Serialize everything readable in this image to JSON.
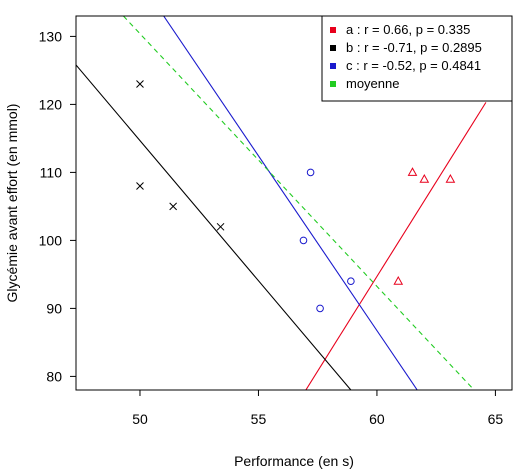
{
  "chart_data": {
    "type": "scatter",
    "title": "",
    "xlabel": "Performance (en s)",
    "ylabel": "Glycémie avant effort (en mmol)",
    "xlim": [
      47.3,
      65.7
    ],
    "ylim": [
      78,
      133
    ],
    "x_ticks": [
      50,
      55,
      60,
      65
    ],
    "y_ticks": [
      80,
      90,
      100,
      110,
      120,
      130
    ],
    "legend_position": "top-right",
    "series": [
      {
        "key": "a",
        "color": "#e8001c",
        "marker": "triangle",
        "points": [
          [
            61.5,
            110
          ],
          [
            62.0,
            109
          ],
          [
            63.1,
            109
          ],
          [
            60.9,
            94
          ]
        ],
        "fit_line": [
          [
            57.0,
            78.0
          ],
          [
            64.6,
            120.3
          ]
        ]
      },
      {
        "key": "b",
        "color": "#000000",
        "marker": "cross",
        "points": [
          [
            50.0,
            123
          ],
          [
            50.0,
            108
          ],
          [
            51.4,
            105
          ],
          [
            53.4,
            102
          ]
        ],
        "fit_line": [
          [
            47.3,
            125.8
          ],
          [
            58.9,
            78.0
          ]
        ]
      },
      {
        "key": "c",
        "color": "#1a1acd",
        "marker": "circle",
        "points": [
          [
            57.2,
            110
          ],
          [
            56.9,
            100
          ],
          [
            58.9,
            94
          ],
          [
            57.6,
            90
          ]
        ],
        "fit_line": [
          [
            51.0,
            133.0
          ],
          [
            61.7,
            78.0
          ]
        ]
      },
      {
        "key": "moyenne",
        "color": "#22cc22",
        "marker": "none",
        "dashed": true,
        "points": [],
        "fit_line": [
          [
            49.3,
            133.0
          ],
          [
            64.1,
            78.0
          ]
        ]
      }
    ],
    "legend": [
      {
        "label": "a : r = 0.66, p = 0.335",
        "color": "#e8001c"
      },
      {
        "label": "b : r = -0.71, p = 0.2895",
        "color": "#000000"
      },
      {
        "label": "c : r = -0.52, p = 0.4841",
        "color": "#1a1acd"
      },
      {
        "label": "moyenne",
        "color": "#22cc22"
      }
    ]
  }
}
